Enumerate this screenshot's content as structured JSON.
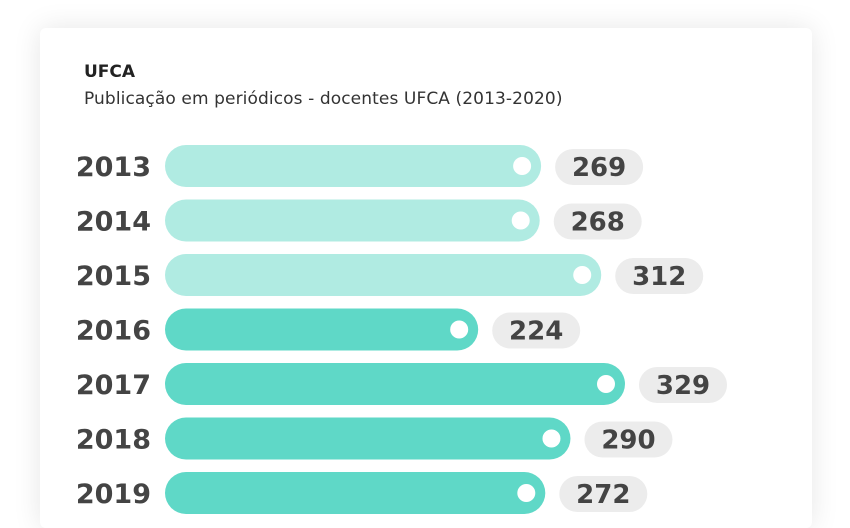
{
  "header": {
    "title": "UFCA",
    "subtitle": "Publicação em periódicos - docentes UFCA (2013-2020)"
  },
  "colors": {
    "light_bar": "#b0ebe2",
    "dark_bar": "#5fd8c7",
    "pill": "#ececec",
    "text": "#444444"
  },
  "chart_data": {
    "type": "bar",
    "orientation": "horizontal",
    "title": "UFCA",
    "subtitle": "Publicação em periódicos - docentes UFCA (2013-2020)",
    "categories": [
      "2013",
      "2014",
      "2015",
      "2016",
      "2017",
      "2018",
      "2019"
    ],
    "values": [
      269,
      268,
      312,
      224,
      329,
      290,
      272
    ],
    "value_labels": [
      "269",
      "268",
      "312",
      "224",
      "329",
      "290",
      "272"
    ],
    "xlim": [
      0,
      329
    ],
    "grid": false,
    "legend": "none"
  }
}
